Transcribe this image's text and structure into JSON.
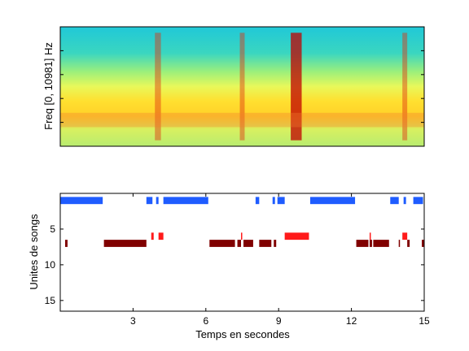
{
  "chart_data": [
    {
      "type": "heatmap",
      "ylabel": "Freq [0, 10981] Hz",
      "xlim": [
        0,
        15
      ],
      "ylim": [
        0,
        10981
      ],
      "colormap": "jet",
      "description_bands": [
        {
          "x": 3.9,
          "width": 0.25,
          "intensity": "high"
        },
        {
          "x": 7.4,
          "width": 0.2,
          "intensity": "high"
        },
        {
          "x": 9.5,
          "width": 0.45,
          "intensity": "very high"
        },
        {
          "x": 14.1,
          "width": 0.2,
          "intensity": "high"
        }
      ]
    },
    {
      "type": "scatter",
      "xlabel": "Temps en secondes",
      "ylabel": "Unites de songs",
      "xlim": [
        0,
        15
      ],
      "ylim": [
        0,
        16.5
      ],
      "xticks": [
        3,
        6,
        9,
        12,
        15
      ],
      "yticks": [
        5,
        10,
        15
      ],
      "series": [
        {
          "unit": 1,
          "color": "#1f5cff",
          "segments": [
            [
              0,
              1.75
            ],
            [
              3.55,
              3.8
            ],
            [
              3.95,
              4.05
            ],
            [
              4.25,
              6.1
            ],
            [
              8.05,
              8.2
            ],
            [
              8.75,
              8.85
            ],
            [
              8.95,
              9.25
            ],
            [
              10.3,
              12.15
            ],
            [
              13.6,
              13.95
            ],
            [
              14.15,
              14.25
            ],
            [
              14.55,
              14.95
            ]
          ]
        },
        {
          "unit": 6,
          "color": "#ff1a1a",
          "segments": [
            [
              3.75,
              3.85
            ],
            [
              4.05,
              4.25
            ],
            [
              7.45,
              7.5
            ],
            [
              9.25,
              10.25
            ],
            [
              12.75,
              12.8
            ],
            [
              14.1,
              14.3
            ]
          ]
        },
        {
          "unit": 7,
          "color": "#800000",
          "segments": [
            [
              0.2,
              0.3
            ],
            [
              1.8,
              3.55
            ],
            [
              6.15,
              7.2
            ],
            [
              7.3,
              7.45
            ],
            [
              7.55,
              7.95
            ],
            [
              8.2,
              8.7
            ],
            [
              8.8,
              8.9
            ],
            [
              12.2,
              12.7
            ],
            [
              12.75,
              12.85
            ],
            [
              12.9,
              13.55
            ],
            [
              13.95,
              14.0
            ],
            [
              14.3,
              14.4
            ],
            [
              14.9,
              15.0
            ]
          ]
        }
      ]
    }
  ]
}
